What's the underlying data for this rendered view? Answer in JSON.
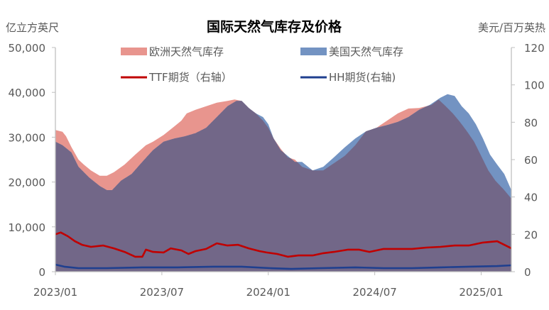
{
  "chart_data": {
    "type": "area",
    "title": "国际天然气库存及价格",
    "ylabel_left": "亿立方英尺",
    "ylabel_right": "美元/百万英热",
    "ylim_left": [
      0,
      50000
    ],
    "ylim_right": [
      0,
      120
    ],
    "yticks_left": [
      "0",
      "10,000",
      "20,000",
      "30,000",
      "40,000",
      "50,000"
    ],
    "yticks_right": [
      "0",
      "20",
      "40",
      "60",
      "80",
      "100",
      "120"
    ],
    "x_unit": "months since 2023/01",
    "xlim": [
      0,
      25.7
    ],
    "xticks": [
      {
        "x": 0,
        "label": "2023/01"
      },
      {
        "x": 6,
        "label": "2023/07"
      },
      {
        "x": 12,
        "label": "2024/01"
      },
      {
        "x": 18,
        "label": "2024/07"
      },
      {
        "x": 24,
        "label": "2025/01"
      }
    ],
    "legend": "top",
    "series": [
      {
        "name": "欧洲天然气库存",
        "axis": "left",
        "kind": "area",
        "color": "#e8958e",
        "x": [
          0,
          0.4,
          0.6,
          0.9,
          1.3,
          1.6,
          2.0,
          2.5,
          2.9,
          3.3,
          3.9,
          4.5,
          5.1,
          5.5,
          6.1,
          6.7,
          7.1,
          7.4,
          7.9,
          8.5,
          9.1,
          9.7,
          10.1,
          10.5,
          10.9,
          11.3,
          11.7,
          12.0,
          12.3,
          12.7,
          13.1,
          13.5,
          13.9,
          14.5,
          15.1,
          15.7,
          16.3,
          16.9,
          17.5,
          18.1,
          18.7,
          19.3,
          19.9,
          20.5,
          20.9,
          21.2,
          21.6,
          22.0,
          22.4,
          22.8,
          23.2,
          23.6,
          24.0,
          24.4,
          24.8,
          25.3,
          25.7
        ],
        "values": [
          31600,
          31200,
          30200,
          27800,
          25000,
          23900,
          22600,
          21400,
          21400,
          22200,
          23900,
          26100,
          28200,
          29000,
          30500,
          32400,
          33700,
          35300,
          36100,
          36900,
          37700,
          38100,
          38400,
          38100,
          36500,
          35300,
          33700,
          32100,
          29700,
          27400,
          25500,
          25000,
          23400,
          22600,
          22600,
          24200,
          25800,
          28200,
          31300,
          32100,
          33700,
          35300,
          36400,
          36500,
          36900,
          37200,
          38400,
          36900,
          35300,
          33400,
          31300,
          29000,
          25800,
          22600,
          20300,
          18200,
          16300
        ]
      },
      {
        "name": "美国天然气库存",
        "axis": "left",
        "kind": "area",
        "color": "#7393c2",
        "x": [
          0,
          0.4,
          0.9,
          1.3,
          1.9,
          2.5,
          2.9,
          3.2,
          3.7,
          4.3,
          4.9,
          5.5,
          6.1,
          6.7,
          7.3,
          7.9,
          8.5,
          9.1,
          9.7,
          10.2,
          10.5,
          10.9,
          11.3,
          11.7,
          12.0,
          12.3,
          12.7,
          13.1,
          13.5,
          13.9,
          14.5,
          15.1,
          15.7,
          16.3,
          16.9,
          17.5,
          18.1,
          18.7,
          19.3,
          19.9,
          20.5,
          21.1,
          21.7,
          22.1,
          22.5,
          22.9,
          23.3,
          23.7,
          24.1,
          24.5,
          24.9,
          25.3,
          25.7
        ],
        "values": [
          29000,
          28200,
          26600,
          23400,
          21000,
          19100,
          18200,
          18200,
          20300,
          21800,
          24500,
          27100,
          29000,
          29700,
          30200,
          30900,
          32100,
          34500,
          36900,
          38100,
          38100,
          36500,
          35300,
          34500,
          32900,
          29700,
          27100,
          25800,
          24500,
          24500,
          22600,
          23400,
          25500,
          27700,
          29700,
          31300,
          32100,
          32700,
          33400,
          34500,
          36100,
          37200,
          38800,
          39600,
          39200,
          36900,
          35300,
          32900,
          29700,
          26100,
          23900,
          21800,
          18200
        ]
      },
      {
        "name": "TTF期货（右轴）",
        "axis": "right",
        "kind": "line",
        "color": "#c00000",
        "x": [
          0,
          0.3,
          0.7,
          1.1,
          1.5,
          2.0,
          2.7,
          3.3,
          3.9,
          4.5,
          4.9,
          5.1,
          5.5,
          6.1,
          6.5,
          7.1,
          7.5,
          7.9,
          8.5,
          9.1,
          9.7,
          10.3,
          10.9,
          11.5,
          11.9,
          12.5,
          13.1,
          13.7,
          14.5,
          15.1,
          15.7,
          16.5,
          17.1,
          17.7,
          18.5,
          19.3,
          20.1,
          20.9,
          21.7,
          22.5,
          23.3,
          24.1,
          24.9,
          25.3,
          25.7
        ],
        "values": [
          20,
          21,
          19,
          16.3,
          14.4,
          13.3,
          14,
          12.5,
          10.6,
          8,
          8,
          11.8,
          10.6,
          10.3,
          12.5,
          11.4,
          9.5,
          11,
          12.2,
          15.2,
          14,
          14.4,
          12.5,
          11,
          10.3,
          9.5,
          8,
          8.7,
          8.7,
          9.9,
          10.6,
          11.8,
          11.8,
          10.6,
          12.2,
          12.2,
          12.2,
          12.9,
          13.3,
          14,
          14,
          15.6,
          16.3,
          14.4,
          12.5
        ]
      },
      {
        "name": "HH期货(右轴)",
        "axis": "right",
        "kind": "line",
        "color": "#1f3f8f",
        "x": [
          0,
          0.5,
          1.3,
          2.9,
          4.9,
          6.9,
          8.9,
          10.5,
          12.1,
          13.3,
          14.9,
          16.9,
          18.5,
          20.1,
          21.7,
          23.3,
          24.9,
          25.7
        ],
        "values": [
          3.8,
          2.7,
          1.9,
          1.9,
          2.3,
          2.3,
          2.7,
          2.7,
          1.9,
          1.5,
          1.9,
          2.3,
          1.9,
          1.9,
          2.3,
          2.7,
          3.0,
          3.4
        ]
      }
    ],
    "overlap_color": "#726788",
    "axis_color": "#bfbfbf"
  }
}
